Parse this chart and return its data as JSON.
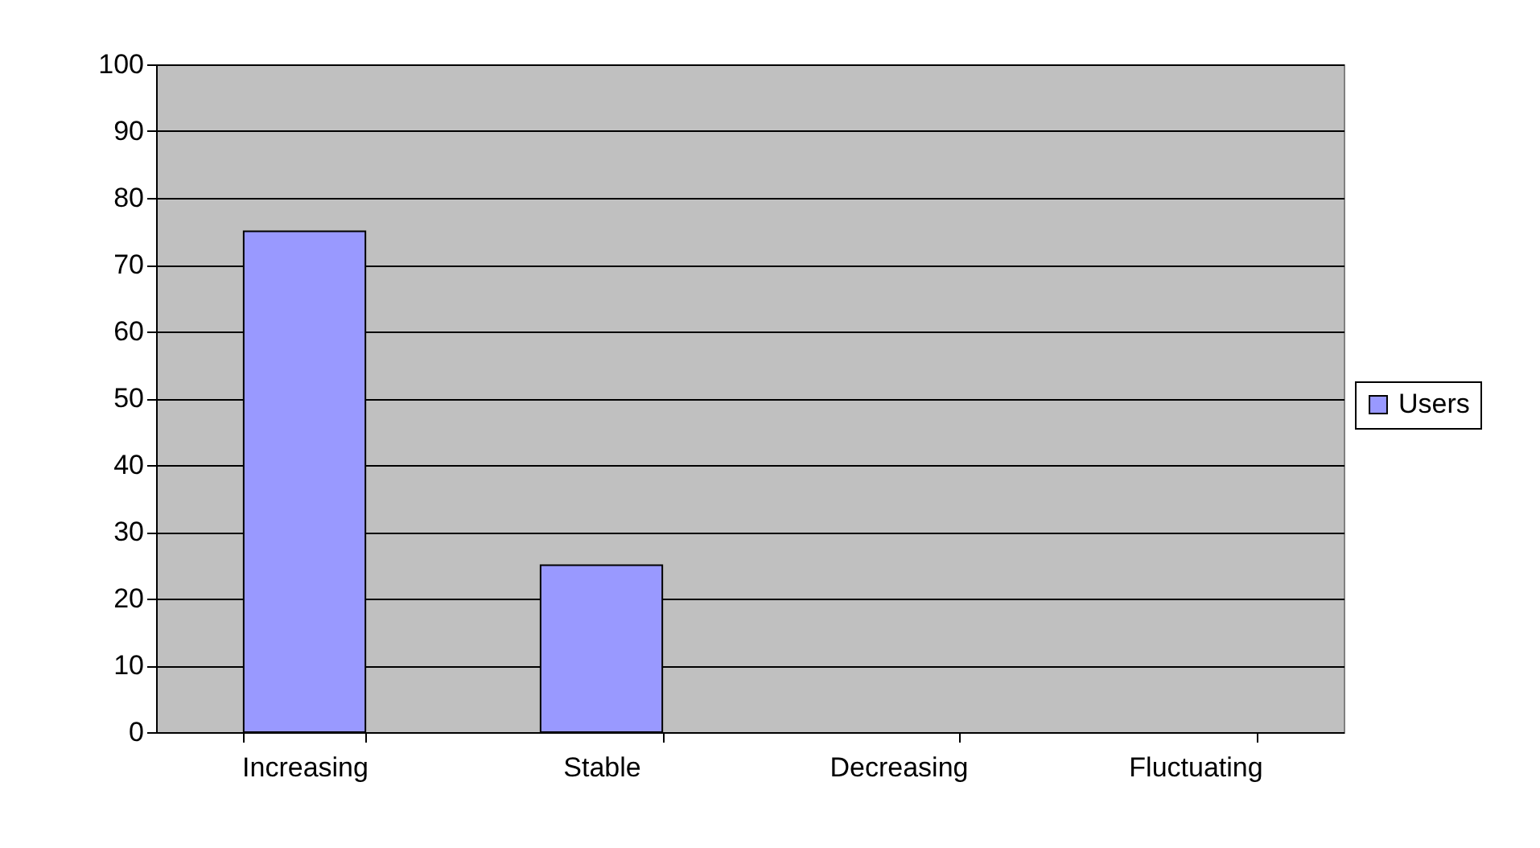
{
  "chart_data": {
    "type": "bar",
    "categories": [
      "Increasing",
      "Stable",
      "Decreasing",
      "Fluctuating"
    ],
    "series": [
      {
        "name": "Users",
        "color": "#9999ff",
        "values": [
          75,
          25,
          0,
          0
        ]
      }
    ],
    "ylim": [
      0,
      100
    ],
    "yticks": [
      0,
      10,
      20,
      30,
      40,
      50,
      60,
      70,
      80,
      90,
      100
    ],
    "grid": "y",
    "legend": "right"
  }
}
